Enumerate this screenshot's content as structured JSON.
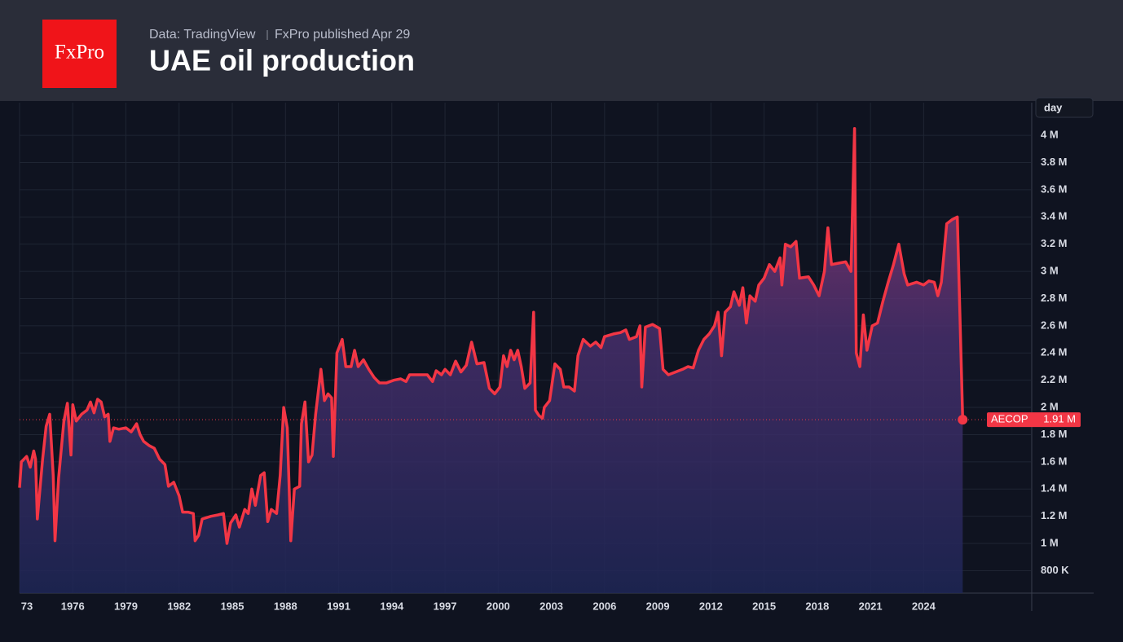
{
  "header": {
    "logo": "FxPro",
    "source": "Data: TradingView",
    "publisher": "FxPro published Apr 29"
  },
  "chart_data": {
    "type": "area",
    "title": "UAE oil production",
    "interval_label": "day",
    "x": [
      1973.0,
      1973.1,
      1973.4,
      1973.6,
      1973.8,
      1973.9,
      1974.0,
      1974.3,
      1974.5,
      1974.7,
      1974.9,
      1975.0,
      1975.2,
      1975.5,
      1975.7,
      1975.9,
      1976.0,
      1976.2,
      1976.5,
      1976.8,
      1977.0,
      1977.2,
      1977.4,
      1977.6,
      1977.8,
      1978.0,
      1978.1,
      1978.3,
      1978.6,
      1979.0,
      1979.3,
      1979.6,
      1979.8,
      1980.0,
      1980.3,
      1980.6,
      1980.9,
      1981.2,
      1981.4,
      1981.7,
      1982.0,
      1982.2,
      1982.5,
      1982.8,
      1982.9,
      1983.1,
      1983.3,
      1983.8,
      1984.2,
      1984.5,
      1984.7,
      1984.9,
      1985.2,
      1985.4,
      1985.7,
      1985.9,
      1986.1,
      1986.3,
      1986.6,
      1986.8,
      1987.0,
      1987.2,
      1987.5,
      1987.7,
      1987.9,
      1988.1,
      1988.3,
      1988.5,
      1988.8,
      1988.9,
      1989.1,
      1989.3,
      1989.5,
      1989.7,
      1990.0,
      1990.2,
      1990.4,
      1990.6,
      1990.7,
      1990.9,
      1991.2,
      1991.4,
      1991.7,
      1991.9,
      1992.1,
      1992.4,
      1992.7,
      1993.0,
      1993.3,
      1993.7,
      1994.1,
      1994.5,
      1994.8,
      1995.0,
      1995.5,
      1996.0,
      1996.3,
      1996.5,
      1996.8,
      1997.0,
      1997.3,
      1997.6,
      1997.9,
      1998.2,
      1998.5,
      1998.8,
      1999.2,
      1999.5,
      1999.8,
      2000.1,
      2000.3,
      2000.5,
      2000.7,
      2000.9,
      2001.1,
      2001.3,
      2001.5,
      2001.8,
      2002.0,
      2002.1,
      2002.3,
      2002.5,
      2002.6,
      2002.9,
      2003.2,
      2003.5,
      2003.7,
      2004.0,
      2004.3,
      2004.5,
      2004.8,
      2005.2,
      2005.5,
      2005.8,
      2006.0,
      2006.5,
      2006.9,
      2007.2,
      2007.4,
      2007.8,
      2008.0,
      2008.1,
      2008.3,
      2008.7,
      2009.1,
      2009.3,
      2009.6,
      2010.0,
      2010.4,
      2010.7,
      2011.0,
      2011.3,
      2011.6,
      2011.9,
      2012.2,
      2012.4,
      2012.6,
      2012.8,
      2013.1,
      2013.3,
      2013.6,
      2013.8,
      2014.0,
      2014.2,
      2014.5,
      2014.7,
      2015.0,
      2015.3,
      2015.6,
      2015.9,
      2016.0,
      2016.2,
      2016.5,
      2016.8,
      2017.0,
      2017.5,
      2017.8,
      2018.1,
      2018.4,
      2018.6,
      2018.8,
      2019.2,
      2019.6,
      2019.9,
      2020.1,
      2020.2,
      2020.4,
      2020.6,
      2020.8,
      2021.1,
      2021.4,
      2021.7,
      2022.0,
      2022.3,
      2022.6,
      2022.9,
      2023.1,
      2023.6,
      2024.0,
      2024.3,
      2024.6,
      2024.8,
      2025.0,
      2025.3,
      2025.6,
      2025.9,
      2026.2
    ],
    "series": [
      {
        "name": "AECOP",
        "color": "#f23645",
        "values": [
          1410000,
          1600000,
          1640000,
          1560000,
          1680000,
          1620000,
          1180000,
          1620000,
          1860000,
          1950000,
          1500000,
          1020000,
          1480000,
          1900000,
          2030000,
          1650000,
          2020000,
          1900000,
          1950000,
          1980000,
          2040000,
          1960000,
          2060000,
          2040000,
          1930000,
          1950000,
          1750000,
          1850000,
          1840000,
          1850000,
          1820000,
          1880000,
          1800000,
          1750000,
          1720000,
          1700000,
          1620000,
          1580000,
          1420000,
          1450000,
          1350000,
          1230000,
          1230000,
          1220000,
          1020000,
          1060000,
          1180000,
          1200000,
          1210000,
          1220000,
          1000000,
          1150000,
          1210000,
          1120000,
          1250000,
          1220000,
          1400000,
          1280000,
          1500000,
          1520000,
          1160000,
          1250000,
          1220000,
          1500000,
          2000000,
          1850000,
          1020000,
          1400000,
          1420000,
          1880000,
          2040000,
          1600000,
          1650000,
          1950000,
          2280000,
          2050000,
          2100000,
          2070000,
          1640000,
          2400000,
          2500000,
          2300000,
          2300000,
          2420000,
          2300000,
          2350000,
          2280000,
          2220000,
          2180000,
          2180000,
          2200000,
          2210000,
          2190000,
          2240000,
          2240000,
          2240000,
          2190000,
          2270000,
          2240000,
          2280000,
          2240000,
          2340000,
          2260000,
          2310000,
          2480000,
          2320000,
          2330000,
          2140000,
          2100000,
          2150000,
          2380000,
          2300000,
          2420000,
          2350000,
          2420000,
          2300000,
          2140000,
          2180000,
          2700000,
          1980000,
          1940000,
          1920000,
          2000000,
          2050000,
          2320000,
          2280000,
          2150000,
          2150000,
          2120000,
          2380000,
          2500000,
          2450000,
          2480000,
          2440000,
          2520000,
          2540000,
          2550000,
          2570000,
          2500000,
          2520000,
          2600000,
          2150000,
          2590000,
          2610000,
          2580000,
          2280000,
          2240000,
          2260000,
          2280000,
          2300000,
          2290000,
          2420000,
          2500000,
          2540000,
          2600000,
          2700000,
          2380000,
          2700000,
          2740000,
          2850000,
          2750000,
          2880000,
          2620000,
          2820000,
          2780000,
          2900000,
          2950000,
          3050000,
          3000000,
          3100000,
          2900000,
          3200000,
          3180000,
          3220000,
          2950000,
          2960000,
          2900000,
          2820000,
          3000000,
          3320000,
          3050000,
          3060000,
          3070000,
          3000000,
          4050000,
          2400000,
          2300000,
          2680000,
          2420000,
          2600000,
          2620000,
          2780000,
          2920000,
          3050000,
          3200000,
          2980000,
          2900000,
          2920000,
          2900000,
          2930000,
          2920000,
          2820000,
          2920000,
          3350000,
          3380000,
          3400000,
          1910000
        ]
      }
    ],
    "last_label": {
      "name": "AECOP",
      "value": "1.91 M"
    },
    "xlim": [
      1973,
      2030.05
    ],
    "xticks": [
      {
        "value": 1973,
        "label": "73"
      },
      1976,
      1979,
      1982,
      1985,
      1988,
      1991,
      1994,
      1997,
      2000,
      2003,
      2006,
      2009,
      2012,
      2015,
      2018,
      2021,
      2024
    ],
    "ylim": [
      635000,
      4240000
    ],
    "yticks": [
      {
        "value": 800000,
        "label": "800 K"
      },
      {
        "value": 1000000,
        "label": "1 M"
      },
      {
        "value": 1200000,
        "label": "1.2 M"
      },
      {
        "value": 1400000,
        "label": "1.4 M"
      },
      {
        "value": 1600000,
        "label": "1.6 M"
      },
      {
        "value": 1800000,
        "label": "1.8 M"
      },
      {
        "value": 2000000,
        "label": "2 M"
      },
      {
        "value": 2200000,
        "label": "2.2 M"
      },
      {
        "value": 2400000,
        "label": "2.4 M"
      },
      {
        "value": 2600000,
        "label": "2.6 M"
      },
      {
        "value": 2800000,
        "label": "2.8 M"
      },
      {
        "value": 3000000,
        "label": "3 M"
      },
      {
        "value": 3200000,
        "label": "3.2 M"
      },
      {
        "value": 3400000,
        "label": "3.4 M"
      },
      {
        "value": 3600000,
        "label": "3.6 M"
      },
      {
        "value": 3800000,
        "label": "3.8 M"
      },
      {
        "value": 4000000,
        "label": "4 M"
      }
    ],
    "grid": true
  }
}
